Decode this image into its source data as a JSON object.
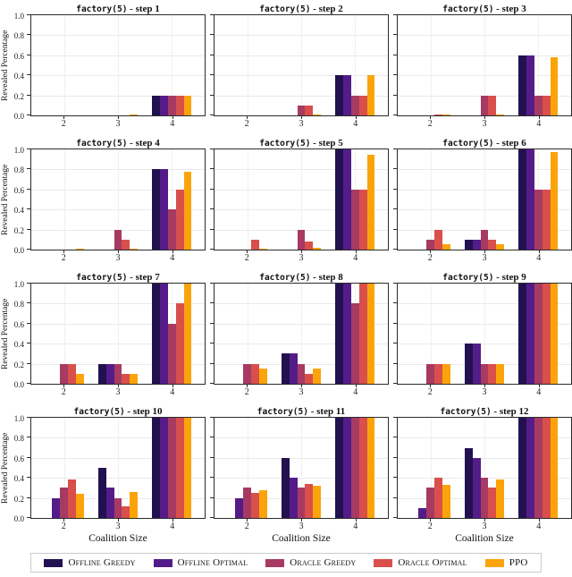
{
  "figure": {
    "ylabel": "Revealed Percentage",
    "xlabel": "Coalition Size",
    "yticks": [
      "0.0",
      "0.2",
      "0.4",
      "0.6",
      "0.8",
      "1.0"
    ],
    "xticks": [
      "2",
      "3",
      "4"
    ]
  },
  "legend": {
    "position": "bottom",
    "items": [
      {
        "label": "Offline Greedy",
        "color": "#221150"
      },
      {
        "label": "Offline Optimal",
        "color": "#541c89"
      },
      {
        "label": "Oracle Greedy",
        "color": "#a73a63"
      },
      {
        "label": "Oracle Optimal",
        "color": "#d94f4b"
      },
      {
        "label": "PPO",
        "color": "#fba40a"
      }
    ]
  },
  "chart_data": {
    "type": "bar",
    "grid_layout": {
      "rows": 4,
      "cols": 3
    },
    "categories": [
      "2",
      "3",
      "4"
    ],
    "xlabel": "Coalition Size",
    "ylabel": "Revealed Percentage",
    "ylim": [
      0,
      1
    ],
    "yticks": [
      0.0,
      0.2,
      0.4,
      0.6,
      0.8,
      1.0
    ],
    "gridlines": true,
    "legend_position": "bottom",
    "series_names": [
      "Offline Greedy",
      "Offline Optimal",
      "Oracle Greedy",
      "Oracle Optimal",
      "PPO"
    ],
    "series_colors": [
      "#221150",
      "#541c89",
      "#a73a63",
      "#d94f4b",
      "#fba40a"
    ],
    "subplots": [
      {
        "title": "factory(5) - step 1",
        "title_prefix": "factory(5)",
        "title_suffix": " - step 1",
        "series": [
          {
            "name": "Offline Greedy",
            "values": [
              0,
              0,
              0.2
            ]
          },
          {
            "name": "Offline Optimal",
            "values": [
              0,
              0,
              0.2
            ]
          },
          {
            "name": "Oracle Greedy",
            "values": [
              0,
              0,
              0.2
            ]
          },
          {
            "name": "Oracle Optimal",
            "values": [
              0,
              0,
              0.2
            ]
          },
          {
            "name": "PPO",
            "values": [
              0,
              0.01,
              0.2
            ]
          }
        ]
      },
      {
        "title": "factory(5) - step 2",
        "title_prefix": "factory(5)",
        "title_suffix": " - step 2",
        "series": [
          {
            "name": "Offline Greedy",
            "values": [
              0,
              0,
              0.4
            ]
          },
          {
            "name": "Offline Optimal",
            "values": [
              0,
              0,
              0.4
            ]
          },
          {
            "name": "Oracle Greedy",
            "values": [
              0,
              0.1,
              0.2
            ]
          },
          {
            "name": "Oracle Optimal",
            "values": [
              0,
              0.1,
              0.2
            ]
          },
          {
            "name": "PPO",
            "values": [
              0,
              0.01,
              0.4
            ]
          }
        ]
      },
      {
        "title": "factory(5) - step 3",
        "title_prefix": "factory(5)",
        "title_suffix": " - step 3",
        "series": [
          {
            "name": "Offline Greedy",
            "values": [
              0,
              0,
              0.6
            ]
          },
          {
            "name": "Offline Optimal",
            "values": [
              0,
              0,
              0.6
            ]
          },
          {
            "name": "Oracle Greedy",
            "values": [
              0,
              0.2,
              0.2
            ]
          },
          {
            "name": "Oracle Optimal",
            "values": [
              0.01,
              0.2,
              0.2
            ]
          },
          {
            "name": "PPO",
            "values": [
              0.01,
              0.01,
              0.58
            ]
          }
        ]
      },
      {
        "title": "factory(5) - step 4",
        "title_prefix": "factory(5)",
        "title_suffix": " - step 4",
        "series": [
          {
            "name": "Offline Greedy",
            "values": [
              0,
              0,
              0.8
            ]
          },
          {
            "name": "Offline Optimal",
            "values": [
              0,
              0,
              0.8
            ]
          },
          {
            "name": "Oracle Greedy",
            "values": [
              0,
              0.2,
              0.4
            ]
          },
          {
            "name": "Oracle Optimal",
            "values": [
              0,
              0.1,
              0.6
            ]
          },
          {
            "name": "PPO",
            "values": [
              0.01,
              0.01,
              0.78
            ]
          }
        ]
      },
      {
        "title": "factory(5) - step 5",
        "title_prefix": "factory(5)",
        "title_suffix": " - step 5",
        "series": [
          {
            "name": "Offline Greedy",
            "values": [
              0,
              0,
              1.0
            ]
          },
          {
            "name": "Offline Optimal",
            "values": [
              0,
              0,
              1.0
            ]
          },
          {
            "name": "Oracle Greedy",
            "values": [
              0,
              0.2,
              0.6
            ]
          },
          {
            "name": "Oracle Optimal",
            "values": [
              0.1,
              0.08,
              0.6
            ]
          },
          {
            "name": "PPO",
            "values": [
              0.01,
              0.02,
              0.95
            ]
          }
        ]
      },
      {
        "title": "factory(5) - step 6",
        "title_prefix": "factory(5)",
        "title_suffix": " - step 6",
        "series": [
          {
            "name": "Offline Greedy",
            "values": [
              0,
              0.1,
              1.0
            ]
          },
          {
            "name": "Offline Optimal",
            "values": [
              0,
              0.1,
              1.0
            ]
          },
          {
            "name": "Oracle Greedy",
            "values": [
              0.1,
              0.2,
              0.6
            ]
          },
          {
            "name": "Oracle Optimal",
            "values": [
              0.2,
              0.1,
              0.6
            ]
          },
          {
            "name": "PPO",
            "values": [
              0.05,
              0.05,
              0.97
            ]
          }
        ]
      },
      {
        "title": "factory(5) - step 7",
        "title_prefix": "factory(5)",
        "title_suffix": " - step 7",
        "series": [
          {
            "name": "Offline Greedy",
            "values": [
              0,
              0.2,
              1.0
            ]
          },
          {
            "name": "Offline Optimal",
            "values": [
              0,
              0.2,
              1.0
            ]
          },
          {
            "name": "Oracle Greedy",
            "values": [
              0.2,
              0.2,
              0.6
            ]
          },
          {
            "name": "Oracle Optimal",
            "values": [
              0.2,
              0.1,
              0.8
            ]
          },
          {
            "name": "PPO",
            "values": [
              0.1,
              0.1,
              1.0
            ]
          }
        ]
      },
      {
        "title": "factory(5) - step 8",
        "title_prefix": "factory(5)",
        "title_suffix": " - step 8",
        "series": [
          {
            "name": "Offline Greedy",
            "values": [
              0,
              0.3,
              1.0
            ]
          },
          {
            "name": "Offline Optimal",
            "values": [
              0,
              0.3,
              1.0
            ]
          },
          {
            "name": "Oracle Greedy",
            "values": [
              0.2,
              0.2,
              0.8
            ]
          },
          {
            "name": "Oracle Optimal",
            "values": [
              0.2,
              0.1,
              1.0
            ]
          },
          {
            "name": "PPO",
            "values": [
              0.15,
              0.15,
              1.0
            ]
          }
        ]
      },
      {
        "title": "factory(5) - step 9",
        "title_prefix": "factory(5)",
        "title_suffix": " - step 9",
        "series": [
          {
            "name": "Offline Greedy",
            "values": [
              0,
              0.4,
              1.0
            ]
          },
          {
            "name": "Offline Optimal",
            "values": [
              0,
              0.4,
              1.0
            ]
          },
          {
            "name": "Oracle Greedy",
            "values": [
              0.2,
              0.2,
              1.0
            ]
          },
          {
            "name": "Oracle Optimal",
            "values": [
              0.2,
              0.2,
              1.0
            ]
          },
          {
            "name": "PPO",
            "values": [
              0.2,
              0.2,
              1.0
            ]
          }
        ]
      },
      {
        "title": "factory(5) - step 10",
        "title_prefix": "factory(5)",
        "title_suffix": " - step 10",
        "series": [
          {
            "name": "Offline Greedy",
            "values": [
              0,
              0.5,
              1.0
            ]
          },
          {
            "name": "Offline Optimal",
            "values": [
              0.2,
              0.3,
              1.0
            ]
          },
          {
            "name": "Oracle Greedy",
            "values": [
              0.3,
              0.2,
              1.0
            ]
          },
          {
            "name": "Oracle Optimal",
            "values": [
              0.38,
              0.12,
              1.0
            ]
          },
          {
            "name": "PPO",
            "values": [
              0.24,
              0.26,
              1.0
            ]
          }
        ]
      },
      {
        "title": "factory(5) - step 11",
        "title_prefix": "factory(5)",
        "title_suffix": " - step 11",
        "series": [
          {
            "name": "Offline Greedy",
            "values": [
              0,
              0.6,
              1.0
            ]
          },
          {
            "name": "Offline Optimal",
            "values": [
              0.2,
              0.4,
              1.0
            ]
          },
          {
            "name": "Oracle Greedy",
            "values": [
              0.3,
              0.3,
              1.0
            ]
          },
          {
            "name": "Oracle Optimal",
            "values": [
              0.25,
              0.34,
              1.0
            ]
          },
          {
            "name": "PPO",
            "values": [
              0.28,
              0.32,
              1.0
            ]
          }
        ]
      },
      {
        "title": "factory(5) - step 12",
        "title_prefix": "factory(5)",
        "title_suffix": " - step 12",
        "series": [
          {
            "name": "Offline Greedy",
            "values": [
              0,
              0.7,
              1.0
            ]
          },
          {
            "name": "Offline Optimal",
            "values": [
              0.1,
              0.6,
              1.0
            ]
          },
          {
            "name": "Oracle Greedy",
            "values": [
              0.3,
              0.4,
              1.0
            ]
          },
          {
            "name": "Oracle Optimal",
            "values": [
              0.4,
              0.3,
              1.0
            ]
          },
          {
            "name": "PPO",
            "values": [
              0.33,
              0.38,
              1.0
            ]
          }
        ]
      }
    ]
  }
}
